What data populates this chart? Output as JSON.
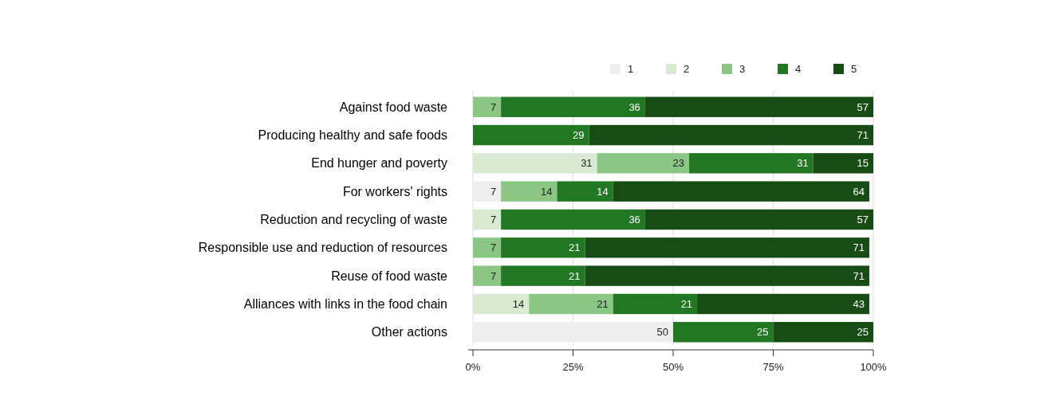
{
  "chart_data": {
    "type": "bar",
    "orientation": "horizontal",
    "stacked": true,
    "data_labels": true,
    "grid": "x",
    "legend": "top right",
    "categories": [
      "Against food waste",
      "Producing healthy and safe foods",
      "End hunger and poverty",
      "For workers' rights",
      "Reduction and recycling of waste",
      "Responsible use and reduction of resources",
      "Reuse of food waste",
      "Alliances with links in the food chain",
      "Other actions"
    ],
    "series": [
      {
        "name": "1",
        "color": "#eeeeee",
        "values": [
          null,
          null,
          null,
          7,
          null,
          null,
          null,
          null,
          50
        ]
      },
      {
        "name": "2",
        "color": "#d9ead3",
        "values": [
          null,
          null,
          31,
          null,
          7,
          null,
          null,
          14,
          null
        ]
      },
      {
        "name": "3",
        "color": "#8bc784",
        "values": [
          7,
          null,
          23,
          14,
          null,
          7,
          7,
          21,
          null
        ]
      },
      {
        "name": "4",
        "color": "#227722",
        "values": [
          36,
          29,
          31,
          14,
          36,
          21,
          21,
          21,
          25
        ]
      },
      {
        "name": "5",
        "color": "#174d14",
        "values": [
          57,
          71,
          15,
          64,
          57,
          71,
          71,
          43,
          25
        ]
      }
    ],
    "xlim": [
      0,
      100
    ],
    "xticks": [
      {
        "value": 0,
        "label": "0%"
      },
      {
        "value": 25,
        "label": "25%"
      },
      {
        "value": 50,
        "label": "50%"
      },
      {
        "value": 75,
        "label": "75%"
      },
      {
        "value": 100,
        "label": "100%"
      }
    ]
  }
}
